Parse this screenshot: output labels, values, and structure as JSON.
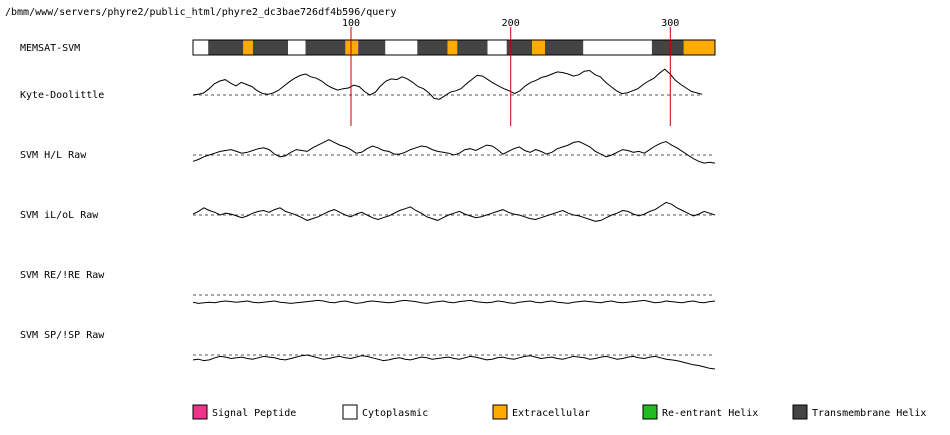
{
  "page": {
    "path_label": "/bmm/www/servers/phyre2/public_html/phyre2_dc3bae726df4b596/query"
  },
  "tracks": [
    {
      "id": "memsat",
      "label": "MEMSAT-SVM"
    },
    {
      "id": "kd",
      "label": "Kyte-Doolittle"
    },
    {
      "id": "hl",
      "label": "SVM H/L Raw"
    },
    {
      "id": "il",
      "label": "SVM iL/oL Raw"
    },
    {
      "id": "re",
      "label": "SVM RE/!RE Raw"
    },
    {
      "id": "sp",
      "label": "SVM SP/!SP Raw"
    }
  ],
  "chart_data": {
    "type": "line",
    "x_range": [
      1,
      328
    ],
    "position_markers": [
      100,
      200,
      300
    ],
    "marker_color": "#cc0000",
    "memsat_segments": [
      {
        "start": 1,
        "end": 10,
        "type": "cytoplasmic"
      },
      {
        "start": 11,
        "end": 32,
        "type": "transmembrane"
      },
      {
        "start": 33,
        "end": 38,
        "type": "extracellular"
      },
      {
        "start": 39,
        "end": 60,
        "type": "transmembrane"
      },
      {
        "start": 61,
        "end": 71,
        "type": "cytoplasmic"
      },
      {
        "start": 72,
        "end": 96,
        "type": "transmembrane"
      },
      {
        "start": 97,
        "end": 104,
        "type": "extracellular"
      },
      {
        "start": 105,
        "end": 121,
        "type": "transmembrane"
      },
      {
        "start": 122,
        "end": 141,
        "type": "cytoplasmic"
      },
      {
        "start": 142,
        "end": 160,
        "type": "transmembrane"
      },
      {
        "start": 161,
        "end": 166,
        "type": "extracellular"
      },
      {
        "start": 167,
        "end": 185,
        "type": "transmembrane"
      },
      {
        "start": 186,
        "end": 197,
        "type": "cytoplasmic"
      },
      {
        "start": 198,
        "end": 213,
        "type": "transmembrane"
      },
      {
        "start": 214,
        "end": 221,
        "type": "extracellular"
      },
      {
        "start": 222,
        "end": 245,
        "type": "transmembrane"
      },
      {
        "start": 246,
        "end": 288,
        "type": "cytoplasmic"
      },
      {
        "start": 289,
        "end": 308,
        "type": "transmembrane"
      },
      {
        "start": 309,
        "end": 328,
        "type": "extracellular"
      }
    ],
    "series": [
      {
        "name": "Kyte-Doolittle",
        "baseline": 0,
        "end": 320,
        "values": [
          0.0,
          0.1,
          0.3,
          0.9,
          1.6,
          2.0,
          2.2,
          1.7,
          1.3,
          1.8,
          1.5,
          1.2,
          0.6,
          0.2,
          0.1,
          0.3,
          0.7,
          1.3,
          1.9,
          2.4,
          2.8,
          3.0,
          2.6,
          2.4,
          2.0,
          1.4,
          1.0,
          0.7,
          0.9,
          1.0,
          1.4,
          1.2,
          0.5,
          0.0,
          0.4,
          1.3,
          2.0,
          2.3,
          2.2,
          2.6,
          2.3,
          1.8,
          1.2,
          0.9,
          0.3,
          -0.5,
          -0.6,
          -0.1,
          0.4,
          0.6,
          0.9,
          1.6,
          2.2,
          2.8,
          2.7,
          2.2,
          1.7,
          1.3,
          0.9,
          0.6,
          0.2,
          0.6,
          1.3,
          1.8,
          2.1,
          2.5,
          2.7,
          3.0,
          3.3,
          3.2,
          3.0,
          2.7,
          2.9,
          3.4,
          3.5,
          2.9,
          2.6,
          1.8,
          1.2,
          0.6,
          0.2,
          0.3,
          0.6,
          0.9,
          1.5,
          2.0,
          2.4,
          3.1,
          3.7,
          3.0,
          2.1,
          1.5,
          1.0,
          0.5,
          0.3,
          0.1
        ]
      },
      {
        "name": "SVM H/L Raw",
        "baseline": 0,
        "end": 328,
        "values": [
          -0.7,
          -0.5,
          -0.2,
          0.0,
          0.2,
          0.4,
          0.5,
          0.6,
          0.4,
          0.2,
          0.3,
          0.5,
          0.7,
          0.8,
          0.6,
          0.1,
          -0.2,
          -0.1,
          0.3,
          0.6,
          0.5,
          0.4,
          0.8,
          1.1,
          1.4,
          1.7,
          1.4,
          1.1,
          0.9,
          0.6,
          0.2,
          0.3,
          0.7,
          1.0,
          0.8,
          0.5,
          0.4,
          0.1,
          0.1,
          0.3,
          0.6,
          0.8,
          1.0,
          0.9,
          0.6,
          0.4,
          0.3,
          0.2,
          0.0,
          0.2,
          0.6,
          0.7,
          0.5,
          0.8,
          1.1,
          1.0,
          0.6,
          0.1,
          0.4,
          0.7,
          0.9,
          0.5,
          0.3,
          0.6,
          0.4,
          0.1,
          0.3,
          0.7,
          0.9,
          1.1,
          1.4,
          1.5,
          1.2,
          0.9,
          0.4,
          0.1,
          -0.2,
          0.0,
          0.3,
          0.6,
          0.5,
          0.3,
          0.4,
          0.2,
          0.6,
          1.0,
          1.3,
          1.5,
          1.1,
          0.8,
          0.4,
          0.0,
          -0.4,
          -0.7,
          -0.9,
          -0.8,
          -0.9
        ]
      },
      {
        "name": "SVM iL/oL Raw",
        "baseline": 0,
        "end": 328,
        "values": [
          0.1,
          0.4,
          0.8,
          0.5,
          0.3,
          0.0,
          0.2,
          0.1,
          -0.1,
          -0.3,
          -0.1,
          0.2,
          0.4,
          0.5,
          0.3,
          0.6,
          0.8,
          0.4,
          0.2,
          0.0,
          -0.3,
          -0.6,
          -0.4,
          -0.2,
          0.1,
          0.4,
          0.6,
          0.3,
          0.0,
          -0.2,
          0.1,
          0.3,
          0.0,
          -0.3,
          -0.5,
          -0.3,
          -0.1,
          0.2,
          0.5,
          0.7,
          0.9,
          0.5,
          0.2,
          -0.2,
          -0.4,
          -0.6,
          -0.3,
          0.0,
          0.2,
          0.4,
          0.1,
          -0.1,
          -0.3,
          -0.2,
          0.0,
          0.2,
          0.4,
          0.6,
          0.3,
          0.1,
          0.0,
          -0.2,
          -0.4,
          -0.5,
          -0.3,
          -0.1,
          0.1,
          0.3,
          0.5,
          0.2,
          0.0,
          -0.1,
          -0.3,
          -0.5,
          -0.7,
          -0.6,
          -0.3,
          0.0,
          0.2,
          0.5,
          0.4,
          0.1,
          -0.1,
          0.1,
          0.4,
          0.6,
          1.0,
          1.4,
          1.2,
          0.8,
          0.5,
          0.2,
          -0.1,
          0.1,
          0.4,
          0.2,
          0.0
        ]
      },
      {
        "name": "SVM RE/!RE Raw",
        "baseline": 0,
        "end": 328,
        "values": [
          -1.2,
          -1.4,
          -1.3,
          -1.2,
          -1.3,
          -1.1,
          -1.0,
          -1.1,
          -1.2,
          -1.1,
          -1.0,
          -1.2,
          -1.3,
          -1.2,
          -1.1,
          -1.0,
          -1.2,
          -1.3,
          -1.4,
          -1.3,
          -1.2,
          -1.1,
          -1.0,
          -0.9,
          -1.0,
          -1.2,
          -1.3,
          -1.1,
          -1.0,
          -1.2,
          -1.4,
          -1.3,
          -1.1,
          -1.0,
          -1.1,
          -1.2,
          -1.3,
          -1.2,
          -1.0,
          -0.9,
          -1.0,
          -1.1,
          -1.3,
          -1.4,
          -1.2,
          -1.1,
          -1.0,
          -1.2,
          -1.3,
          -1.1,
          -1.0,
          -0.9,
          -1.1,
          -1.2,
          -1.3,
          -1.2,
          -1.0,
          -1.1,
          -1.3,
          -1.4,
          -1.2,
          -1.1,
          -1.0,
          -1.2,
          -1.3,
          -1.1,
          -1.0,
          -1.2,
          -1.3,
          -1.4,
          -1.2,
          -1.1,
          -1.0,
          -1.1,
          -1.2,
          -1.3,
          -1.1,
          -1.0,
          -1.2,
          -1.3,
          -1.2,
          -1.1,
          -1.0,
          -0.9,
          -1.1,
          -1.3,
          -1.2,
          -1.0,
          -1.1,
          -1.2,
          -1.3,
          -1.1,
          -1.0,
          -1.2,
          -1.3,
          -1.1,
          -1.0
        ]
      },
      {
        "name": "SVM SP/!SP Raw",
        "baseline": 0,
        "end": 328,
        "values": [
          -0.7,
          -0.6,
          -0.8,
          -0.7,
          -0.4,
          -0.2,
          -0.3,
          -0.5,
          -0.4,
          -0.3,
          -0.5,
          -0.6,
          -0.4,
          -0.2,
          -0.3,
          -0.4,
          -0.6,
          -0.7,
          -0.5,
          -0.3,
          -0.1,
          0.0,
          -0.2,
          -0.4,
          -0.6,
          -0.5,
          -0.3,
          -0.2,
          -0.4,
          -0.5,
          -0.3,
          -0.1,
          -0.2,
          -0.4,
          -0.6,
          -0.8,
          -0.7,
          -0.5,
          -0.4,
          -0.6,
          -0.7,
          -0.5,
          -0.3,
          -0.4,
          -0.6,
          -0.5,
          -0.4,
          -0.3,
          -0.5,
          -0.6,
          -0.4,
          -0.2,
          -0.3,
          -0.5,
          -0.7,
          -0.6,
          -0.4,
          -0.3,
          -0.5,
          -0.6,
          -0.4,
          -0.2,
          -0.1,
          -0.3,
          -0.5,
          -0.4,
          -0.3,
          -0.5,
          -0.6,
          -0.4,
          -0.2,
          -0.3,
          -0.4,
          -0.6,
          -0.5,
          -0.3,
          -0.2,
          -0.4,
          -0.6,
          -0.5,
          -0.3,
          -0.2,
          -0.4,
          -0.5,
          -0.3,
          -0.2,
          -0.4,
          -0.6,
          -0.7,
          -0.8,
          -1.0,
          -1.2,
          -1.4,
          -1.5,
          -1.7,
          -1.9,
          -2.0
        ]
      }
    ]
  },
  "legend": [
    {
      "key": "signal_peptide",
      "label": "Signal Peptide",
      "color": "#ee3388"
    },
    {
      "key": "cytoplasmic",
      "label": "Cytoplasmic",
      "color": "#ffffff"
    },
    {
      "key": "extracellular",
      "label": "Extracellular",
      "color": "#ffaa00"
    },
    {
      "key": "reentrant",
      "label": "Re-entrant Helix",
      "color": "#22bb22"
    },
    {
      "key": "transmembrane",
      "label": "Transmembrane Helix",
      "color": "#444444"
    }
  ],
  "colors": {
    "transmembrane": "#444444",
    "extracellular": "#ffaa00",
    "cytoplasmic": "#ffffff",
    "line": "#000000",
    "baseline": "#555555"
  }
}
